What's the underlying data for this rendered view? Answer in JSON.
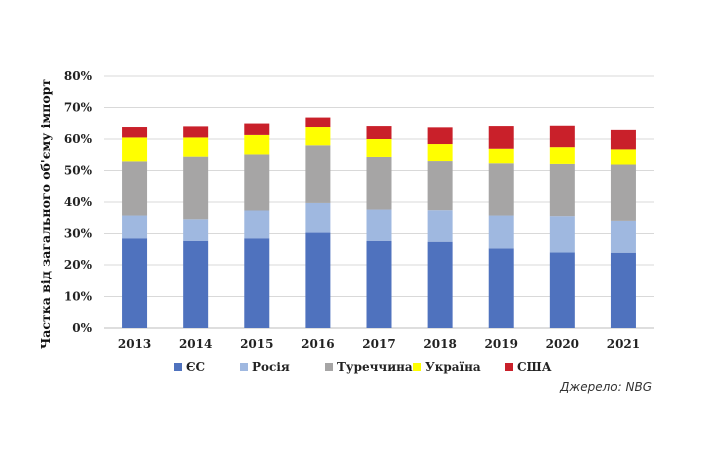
{
  "chart_data": {
    "type": "stacked-bar",
    "categories": [
      "2013",
      "2014",
      "2015",
      "2016",
      "2017",
      "2018",
      "2019",
      "2020",
      "2021"
    ],
    "series": [
      {
        "name": "ЄС",
        "color": "#4f72be",
        "values": [
          28.5,
          27.7,
          28.5,
          30.3,
          27.7,
          27.4,
          25.3,
          24.0,
          23.9
        ]
      },
      {
        "name": "Росія",
        "color": "#9fb8e0",
        "values": [
          7.2,
          6.8,
          8.8,
          9.4,
          9.9,
          10.0,
          10.4,
          11.5,
          10.1
        ]
      },
      {
        "name": "Туреччина",
        "color": "#a6a5a5",
        "values": [
          17.2,
          19.9,
          17.8,
          18.3,
          16.7,
          15.6,
          16.6,
          16.6,
          17.9
        ]
      },
      {
        "name": "Україна",
        "color": "#ffff00",
        "values": [
          7.6,
          6.1,
          6.2,
          5.8,
          5.7,
          5.4,
          4.6,
          5.3,
          4.8
        ]
      },
      {
        "name": "США",
        "color": "#c9202a",
        "values": [
          3.3,
          3.5,
          3.6,
          3.0,
          4.1,
          5.3,
          7.2,
          6.8,
          6.2
        ]
      }
    ],
    "yticks": [
      "0%",
      "10%",
      "20%",
      "30%",
      "40%",
      "50%",
      "60%",
      "70%",
      "80%"
    ],
    "ylim": [
      0,
      80
    ],
    "ylabel": "Частка від загального об'єму імпорт",
    "xlabel": "",
    "title": "",
    "grid": true,
    "legend_position": "bottom"
  },
  "source": "Джерело: NBG"
}
